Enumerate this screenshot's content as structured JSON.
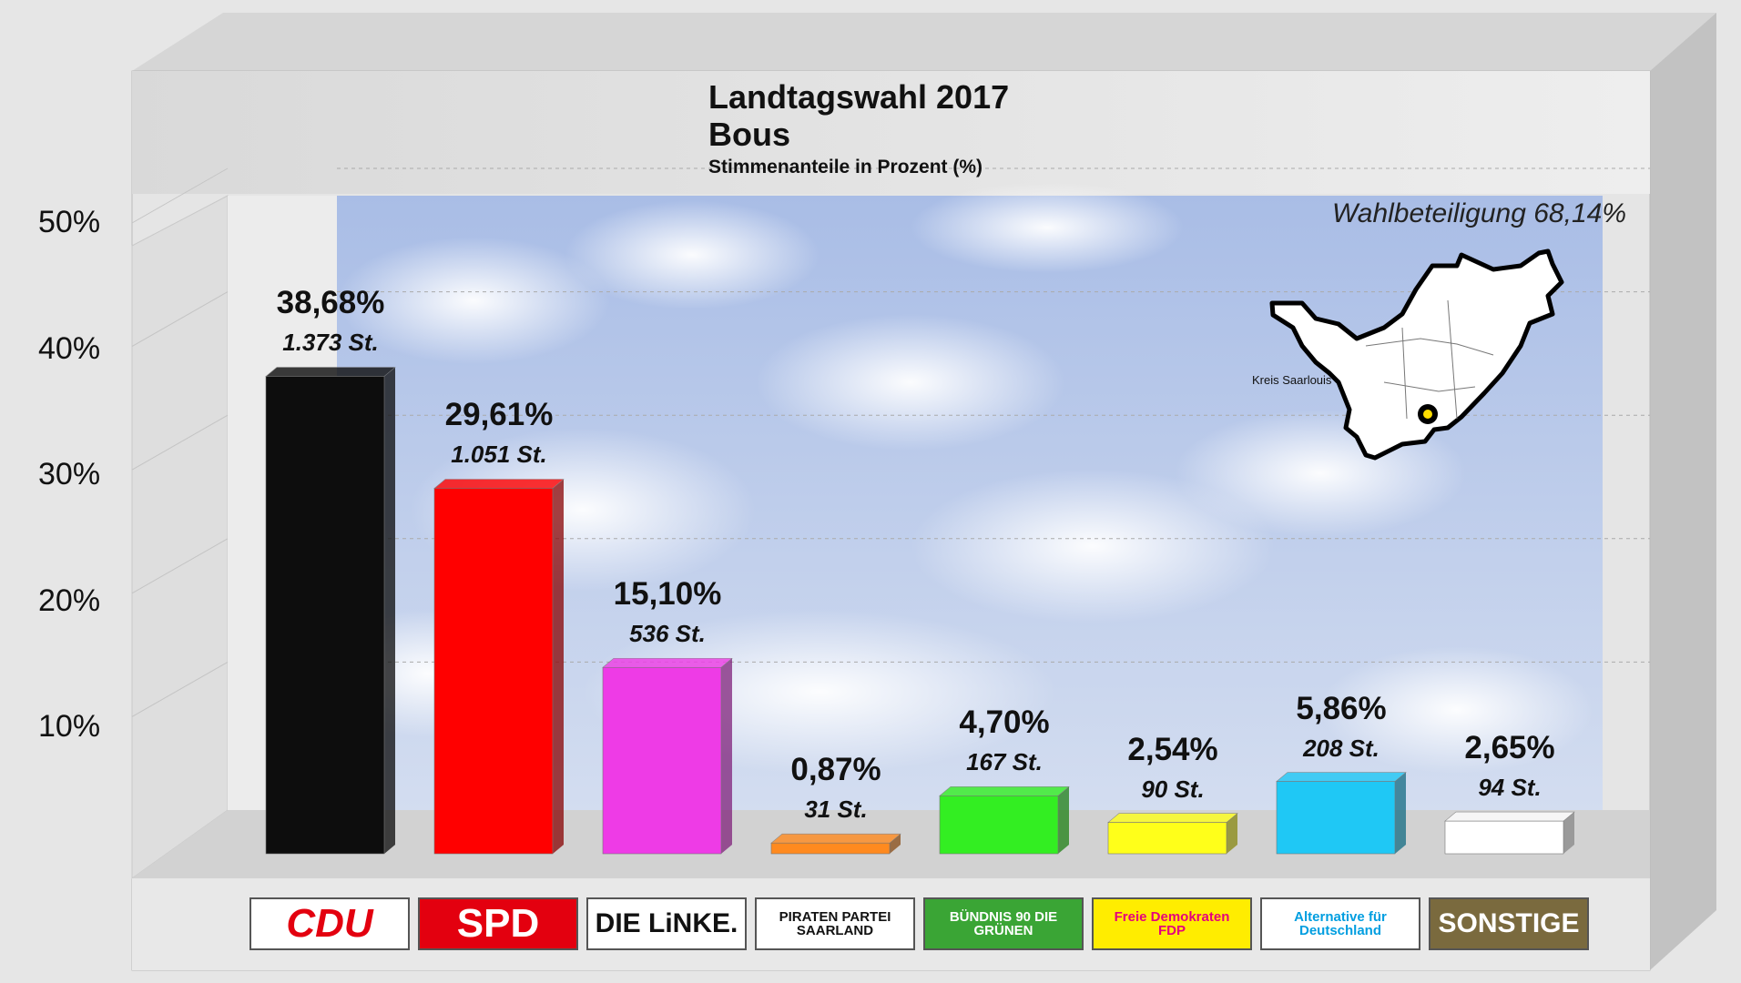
{
  "title": "Landtagswahl 2017",
  "subtitle": "Bous",
  "caption": "Stimmenanteile in Prozent (%)",
  "turnout": "Wahlbeteiligung 68,14%",
  "map_label": "Kreis Saarlouis",
  "colors": {
    "CDU": "#0d0d0d",
    "SPD": "#ff0000",
    "LINKE": "#ee3be6",
    "PIRATEN": "#ff8a1f",
    "GRUENE": "#33ee22",
    "FDP": "#ffff1a",
    "AFD": "#1fc8f5",
    "SONSTIGE": "#ffffff"
  },
  "logos": [
    {
      "text": "CDU",
      "bg": "#ffffff",
      "fg": "#e3000f"
    },
    {
      "text": "SPD",
      "bg": "#e3000f",
      "fg": "#ffffff"
    },
    {
      "text": "DIE LiNKE.",
      "bg": "#ffffff",
      "fg": "#111111"
    },
    {
      "text": "PIRATEN PARTEI SAARLAND",
      "bg": "#ffffff",
      "fg": "#111111"
    },
    {
      "text": "BÜNDNIS 90 DIE GRÜNEN",
      "bg": "#3aa535",
      "fg": "#ffffff"
    },
    {
      "text": "Freie Demokraten FDP",
      "bg": "#ffed00",
      "fg": "#e5007d"
    },
    {
      "text": "Alternative für Deutschland",
      "bg": "#ffffff",
      "fg": "#009ee0"
    },
    {
      "text": "SONSTIGE",
      "bg": "#7a6a3e",
      "fg": "#ffffff"
    }
  ],
  "chart_data": {
    "type": "bar",
    "title": "Landtagswahl 2017",
    "subtitle": "Bous",
    "ylabel": "Stimmenanteile in Prozent (%)",
    "categories": [
      "CDU",
      "SPD",
      "DIE LINKE",
      "PIRATEN",
      "GRÜNE",
      "FDP",
      "AfD",
      "SONSTIGE"
    ],
    "values": [
      38.68,
      29.61,
      15.1,
      0.87,
      4.7,
      2.54,
      5.86,
      2.65
    ],
    "value_labels": [
      "38,68%",
      "29,61%",
      "15,10%",
      "0,87%",
      "4,70%",
      "2,54%",
      "5,86%",
      "2,65%"
    ],
    "vote_labels": [
      "1.373 St.",
      "1.051 St.",
      "536 St.",
      "31 St.",
      "167 St.",
      "90 St.",
      "208 St.",
      "94 St."
    ],
    "ylim": [
      0,
      50
    ],
    "yticks": [
      10,
      20,
      30,
      40,
      50
    ],
    "ytick_labels": [
      "10%",
      "20%",
      "30%",
      "40%",
      "50%"
    ],
    "grid": true,
    "legend": "none"
  }
}
